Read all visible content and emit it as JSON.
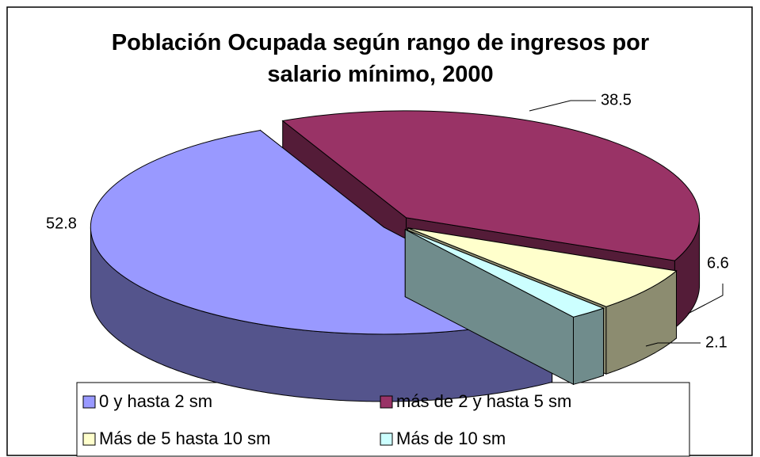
{
  "chart_data": {
    "type": "pie3d",
    "title": "Población Ocupada según rango de ingresos por salario mínimo, 2000",
    "categories": [
      "0 y hasta 2 sm",
      "más de 2 y hasta 5 sm",
      "Más de 5 hasta 10 sm",
      "Más de 10 sm"
    ],
    "values": [
      52.8,
      38.5,
      6.6,
      2.1
    ],
    "colors": [
      "#9999ff",
      "#993366",
      "#ffffcc",
      "#ccffff"
    ],
    "legend": "bottom"
  }
}
